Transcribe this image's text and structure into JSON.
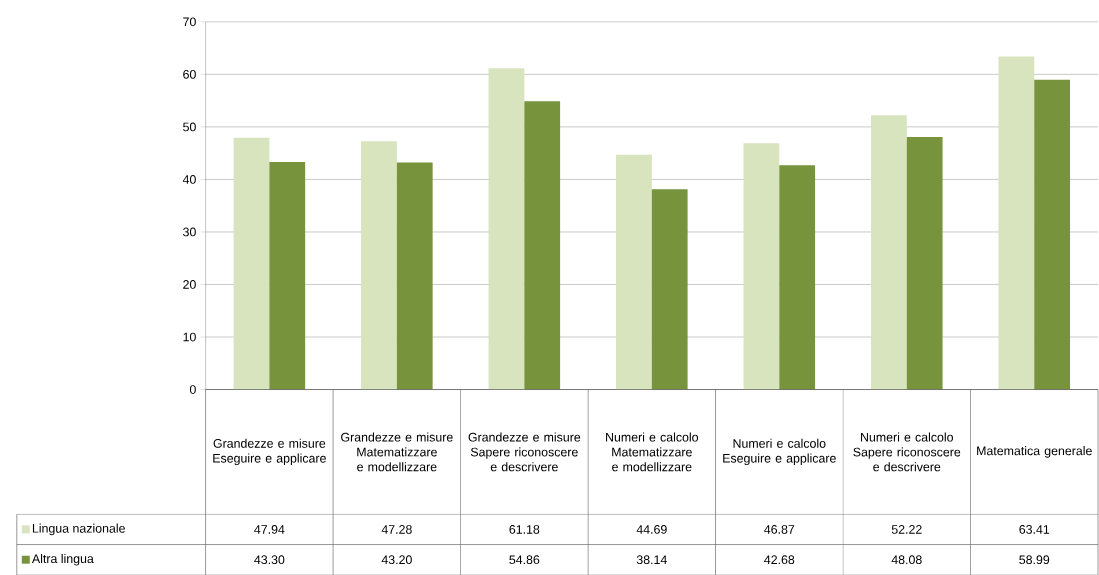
{
  "chart_data": {
    "type": "bar",
    "categories": [
      "Grandezze e misure Eseguire e applicare",
      "Grandezze e misure Matematizzare e modellizzare",
      "Grandezze e misure Sapere riconoscere e descrivere",
      "Numeri e calcolo Matematizzare e modellizzare",
      "Numeri e calcolo Eseguire e applicare",
      "Numeri e calcolo Sapere riconoscere e descrivere",
      "Matematica generale"
    ],
    "series": [
      {
        "name": "Lingua nazionale",
        "color": "#d7e4bd",
        "values": [
          47.94,
          47.28,
          61.18,
          44.69,
          46.87,
          52.22,
          63.41
        ],
        "value_labels": [
          "47.94",
          "47.28",
          "61.18",
          "44.69",
          "46.87",
          "52.22",
          "63.41"
        ]
      },
      {
        "name": "Altra lingua",
        "color": "#77933c",
        "values": [
          43.3,
          43.2,
          54.86,
          38.14,
          42.68,
          48.08,
          58.99
        ],
        "value_labels": [
          "43.30",
          "43.20",
          "54.86",
          "38.14",
          "42.68",
          "48.08",
          "58.99"
        ]
      }
    ],
    "ylim": [
      0,
      70
    ],
    "yticks": [
      0,
      10,
      20,
      30,
      40,
      50,
      60,
      70
    ],
    "grid": "y",
    "legend": "bottom"
  }
}
